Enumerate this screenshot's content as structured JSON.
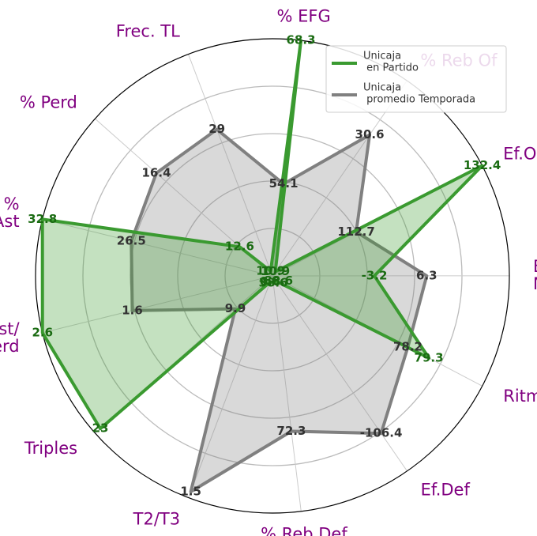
{
  "chart_data": {
    "type": "radar",
    "axes": [
      {
        "label": "% EFG",
        "lim": [
          45.0,
          68.3
        ]
      },
      {
        "label": "% Reb Of",
        "lim": [
          10.3,
          38.4
        ]
      },
      {
        "label": "Ef.Of",
        "lim": [
          99.6,
          132.4
        ]
      },
      {
        "label": "Ef.\nNeta",
        "lim": [
          -21.7,
          21.3
        ]
      },
      {
        "label": "Ritmo",
        "lim": [
          71.1,
          82.1
        ]
      },
      {
        "label": "Ef.Def",
        "lim": [
          -88.0,
          -110.8
        ]
      },
      {
        "label": "% Reb Def",
        "lim": [
          37.0,
          90.5
        ]
      },
      {
        "label": "T2/T3",
        "lim": [
          0.78,
          1.52
        ]
      },
      {
        "label": "Triples",
        "lim": [
          6.3,
          23.5
        ]
      },
      {
        "label": "Ast/\nPerd",
        "lim": [
          0.04,
          2.6
        ]
      },
      {
        "label": "%\nAst",
        "lim": [
          16.5,
          32.8
        ]
      },
      {
        "label": "% Perd",
        "lim": [
          11.1,
          19.2
        ]
      },
      {
        "label": "Frec. TL",
        "lim": [
          10.3,
          38.6
        ]
      }
    ],
    "series": [
      {
        "name": "Unicaja\n en Partido",
        "color": "#3a9a30",
        "label_color": "#1a6b12",
        "values": [
          68.3,
          10.9,
          132.4,
          -3.2,
          79.3,
          -88.6,
          38.6,
          0.8,
          23.0,
          2.6,
          32.8,
          12.6,
          10.9
        ]
      },
      {
        "name": "Unicaja\n promedio Temporada",
        "color": "#808080",
        "label_color": "#333333",
        "values": [
          54.1,
          30.6,
          112.7,
          6.3,
          78.2,
          -106.4,
          72.3,
          1.5,
          9.9,
          1.6,
          26.5,
          16.4,
          29.0
        ]
      }
    ]
  }
}
